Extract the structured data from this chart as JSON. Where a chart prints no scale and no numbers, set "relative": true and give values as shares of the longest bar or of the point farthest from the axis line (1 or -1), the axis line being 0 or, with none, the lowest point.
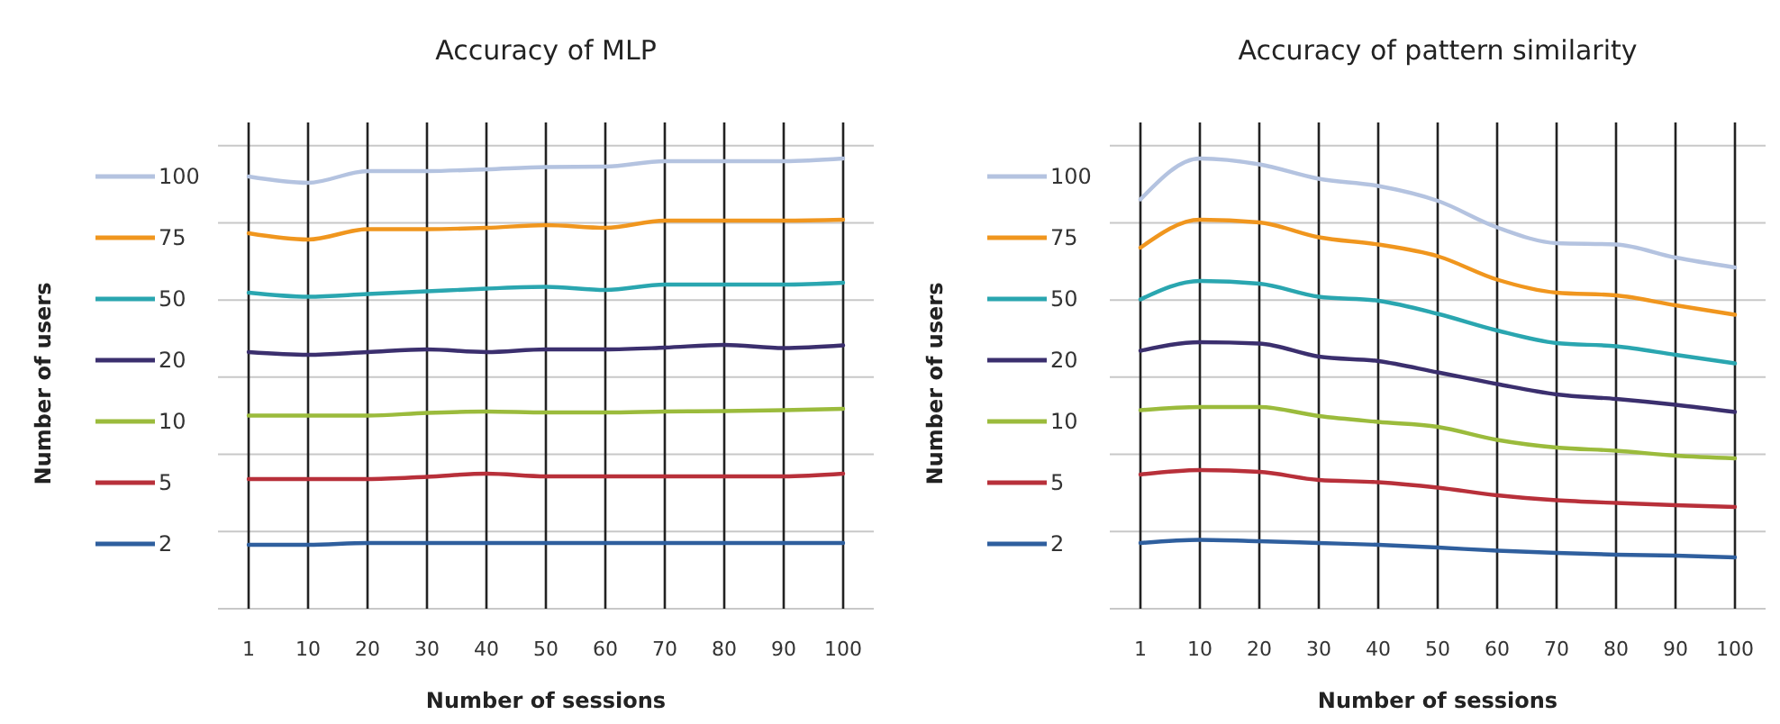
{
  "chart_data": [
    {
      "type": "line",
      "title": "Accuracy of MLP",
      "xlabel": "Number of sessions",
      "ylabel": "Number of users",
      "relative": true,
      "grid": true,
      "legend": "left",
      "categories": [
        "1",
        "10",
        "20",
        "30",
        "40",
        "50",
        "60",
        "70",
        "80",
        "90",
        "100"
      ],
      "series": [
        {
          "name": "100",
          "color": "#b4c3e0",
          "values": [
            0.96,
            0.946,
            0.972,
            0.972,
            0.976,
            0.981,
            0.982,
            0.994,
            0.994,
            0.994,
            1.0
          ]
        },
        {
          "name": "75",
          "color": "#f0961e",
          "values": [
            0.834,
            0.82,
            0.843,
            0.843,
            0.846,
            0.852,
            0.846,
            0.862,
            0.862,
            0.862,
            0.864
          ]
        },
        {
          "name": "50",
          "color": "#2aa6b0",
          "values": [
            0.702,
            0.693,
            0.699,
            0.705,
            0.711,
            0.715,
            0.708,
            0.72,
            0.72,
            0.72,
            0.724
          ]
        },
        {
          "name": "20",
          "color": "#3b2f6e",
          "values": [
            0.57,
            0.564,
            0.57,
            0.576,
            0.57,
            0.576,
            0.576,
            0.58,
            0.586,
            0.579,
            0.585
          ]
        },
        {
          "name": "10",
          "color": "#9bbb3c",
          "values": [
            0.429,
            0.429,
            0.429,
            0.435,
            0.438,
            0.436,
            0.436,
            0.438,
            0.439,
            0.441,
            0.444
          ]
        },
        {
          "name": "5",
          "color": "#b8303a",
          "values": [
            0.288,
            0.288,
            0.288,
            0.293,
            0.3,
            0.294,
            0.294,
            0.294,
            0.294,
            0.294,
            0.3
          ]
        },
        {
          "name": "2",
          "color": "#2f5f9e",
          "values": [
            0.142,
            0.142,
            0.146,
            0.146,
            0.146,
            0.146,
            0.146,
            0.146,
            0.146,
            0.146,
            0.146
          ]
        }
      ]
    },
    {
      "type": "line",
      "title": "Accuracy of pattern similarity",
      "xlabel": "Number of sessions",
      "ylabel": "Number of users",
      "relative": true,
      "grid": true,
      "legend": "left",
      "categories": [
        "1",
        "10",
        "20",
        "30",
        "40",
        "50",
        "60",
        "70",
        "80",
        "90",
        "100"
      ],
      "series": [
        {
          "name": "100",
          "color": "#b4c3e0",
          "values": [
            0.909,
            1.0,
            0.987,
            0.955,
            0.939,
            0.906,
            0.847,
            0.812,
            0.809,
            0.78,
            0.758
          ]
        },
        {
          "name": "75",
          "color": "#f0961e",
          "values": [
            0.802,
            0.864,
            0.858,
            0.825,
            0.809,
            0.783,
            0.731,
            0.702,
            0.696,
            0.674,
            0.653
          ]
        },
        {
          "name": "50",
          "color": "#2aa6b0",
          "values": [
            0.687,
            0.728,
            0.722,
            0.693,
            0.684,
            0.655,
            0.618,
            0.59,
            0.583,
            0.564,
            0.545
          ]
        },
        {
          "name": "20",
          "color": "#3b2f6e",
          "values": [
            0.573,
            0.592,
            0.589,
            0.56,
            0.55,
            0.525,
            0.499,
            0.476,
            0.466,
            0.453,
            0.437
          ]
        },
        {
          "name": "10",
          "color": "#9bbb3c",
          "values": [
            0.441,
            0.448,
            0.448,
            0.428,
            0.415,
            0.404,
            0.375,
            0.358,
            0.351,
            0.34,
            0.334
          ]
        },
        {
          "name": "5",
          "color": "#b8303a",
          "values": [
            0.298,
            0.308,
            0.304,
            0.286,
            0.281,
            0.269,
            0.252,
            0.241,
            0.235,
            0.23,
            0.226
          ]
        },
        {
          "name": "2",
          "color": "#2f5f9e",
          "values": [
            0.146,
            0.153,
            0.15,
            0.146,
            0.142,
            0.136,
            0.129,
            0.124,
            0.12,
            0.118,
            0.114
          ]
        }
      ]
    }
  ]
}
